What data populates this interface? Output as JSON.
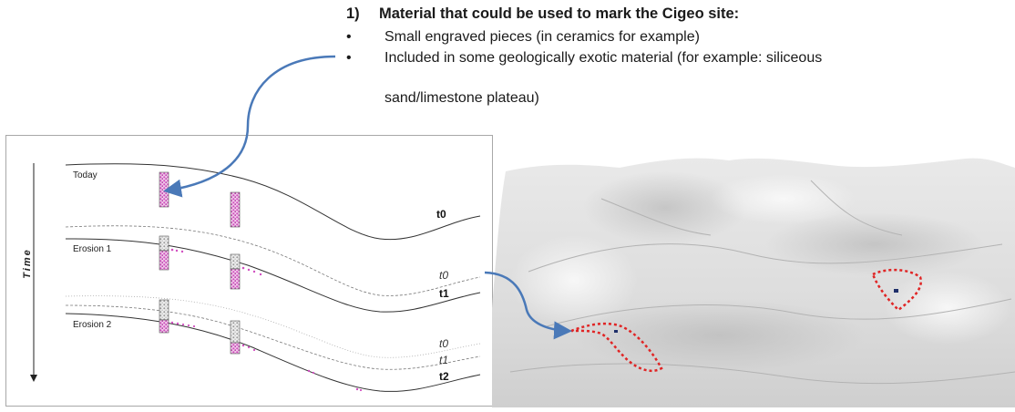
{
  "heading": {
    "number": "1)",
    "text": "Material that could be used to mark the Cigeo site:"
  },
  "bullets": [
    {
      "symbol": "•",
      "text": "Small engraved pieces (in ceramics for example)"
    },
    {
      "symbol": "•",
      "text": "Included in some geologically exotic material (for example: siliceous"
    }
  ],
  "bullet_continuation": "sand/limestone plateau)",
  "diagram": {
    "axis_label": "Time",
    "stages": [
      {
        "label": "Today",
        "markers": [
          "t0"
        ]
      },
      {
        "label": "Erosion 1",
        "markers": [
          "t0",
          "t1"
        ]
      },
      {
        "label": "Erosion 2",
        "markers": [
          "t0",
          "t1",
          "t2"
        ]
      }
    ]
  },
  "colors": {
    "arrow": "#4a79b8",
    "marker_fill": "#d14fc0",
    "dashed_zone": "#e02525",
    "terrain_base": "#d9d9d9"
  }
}
